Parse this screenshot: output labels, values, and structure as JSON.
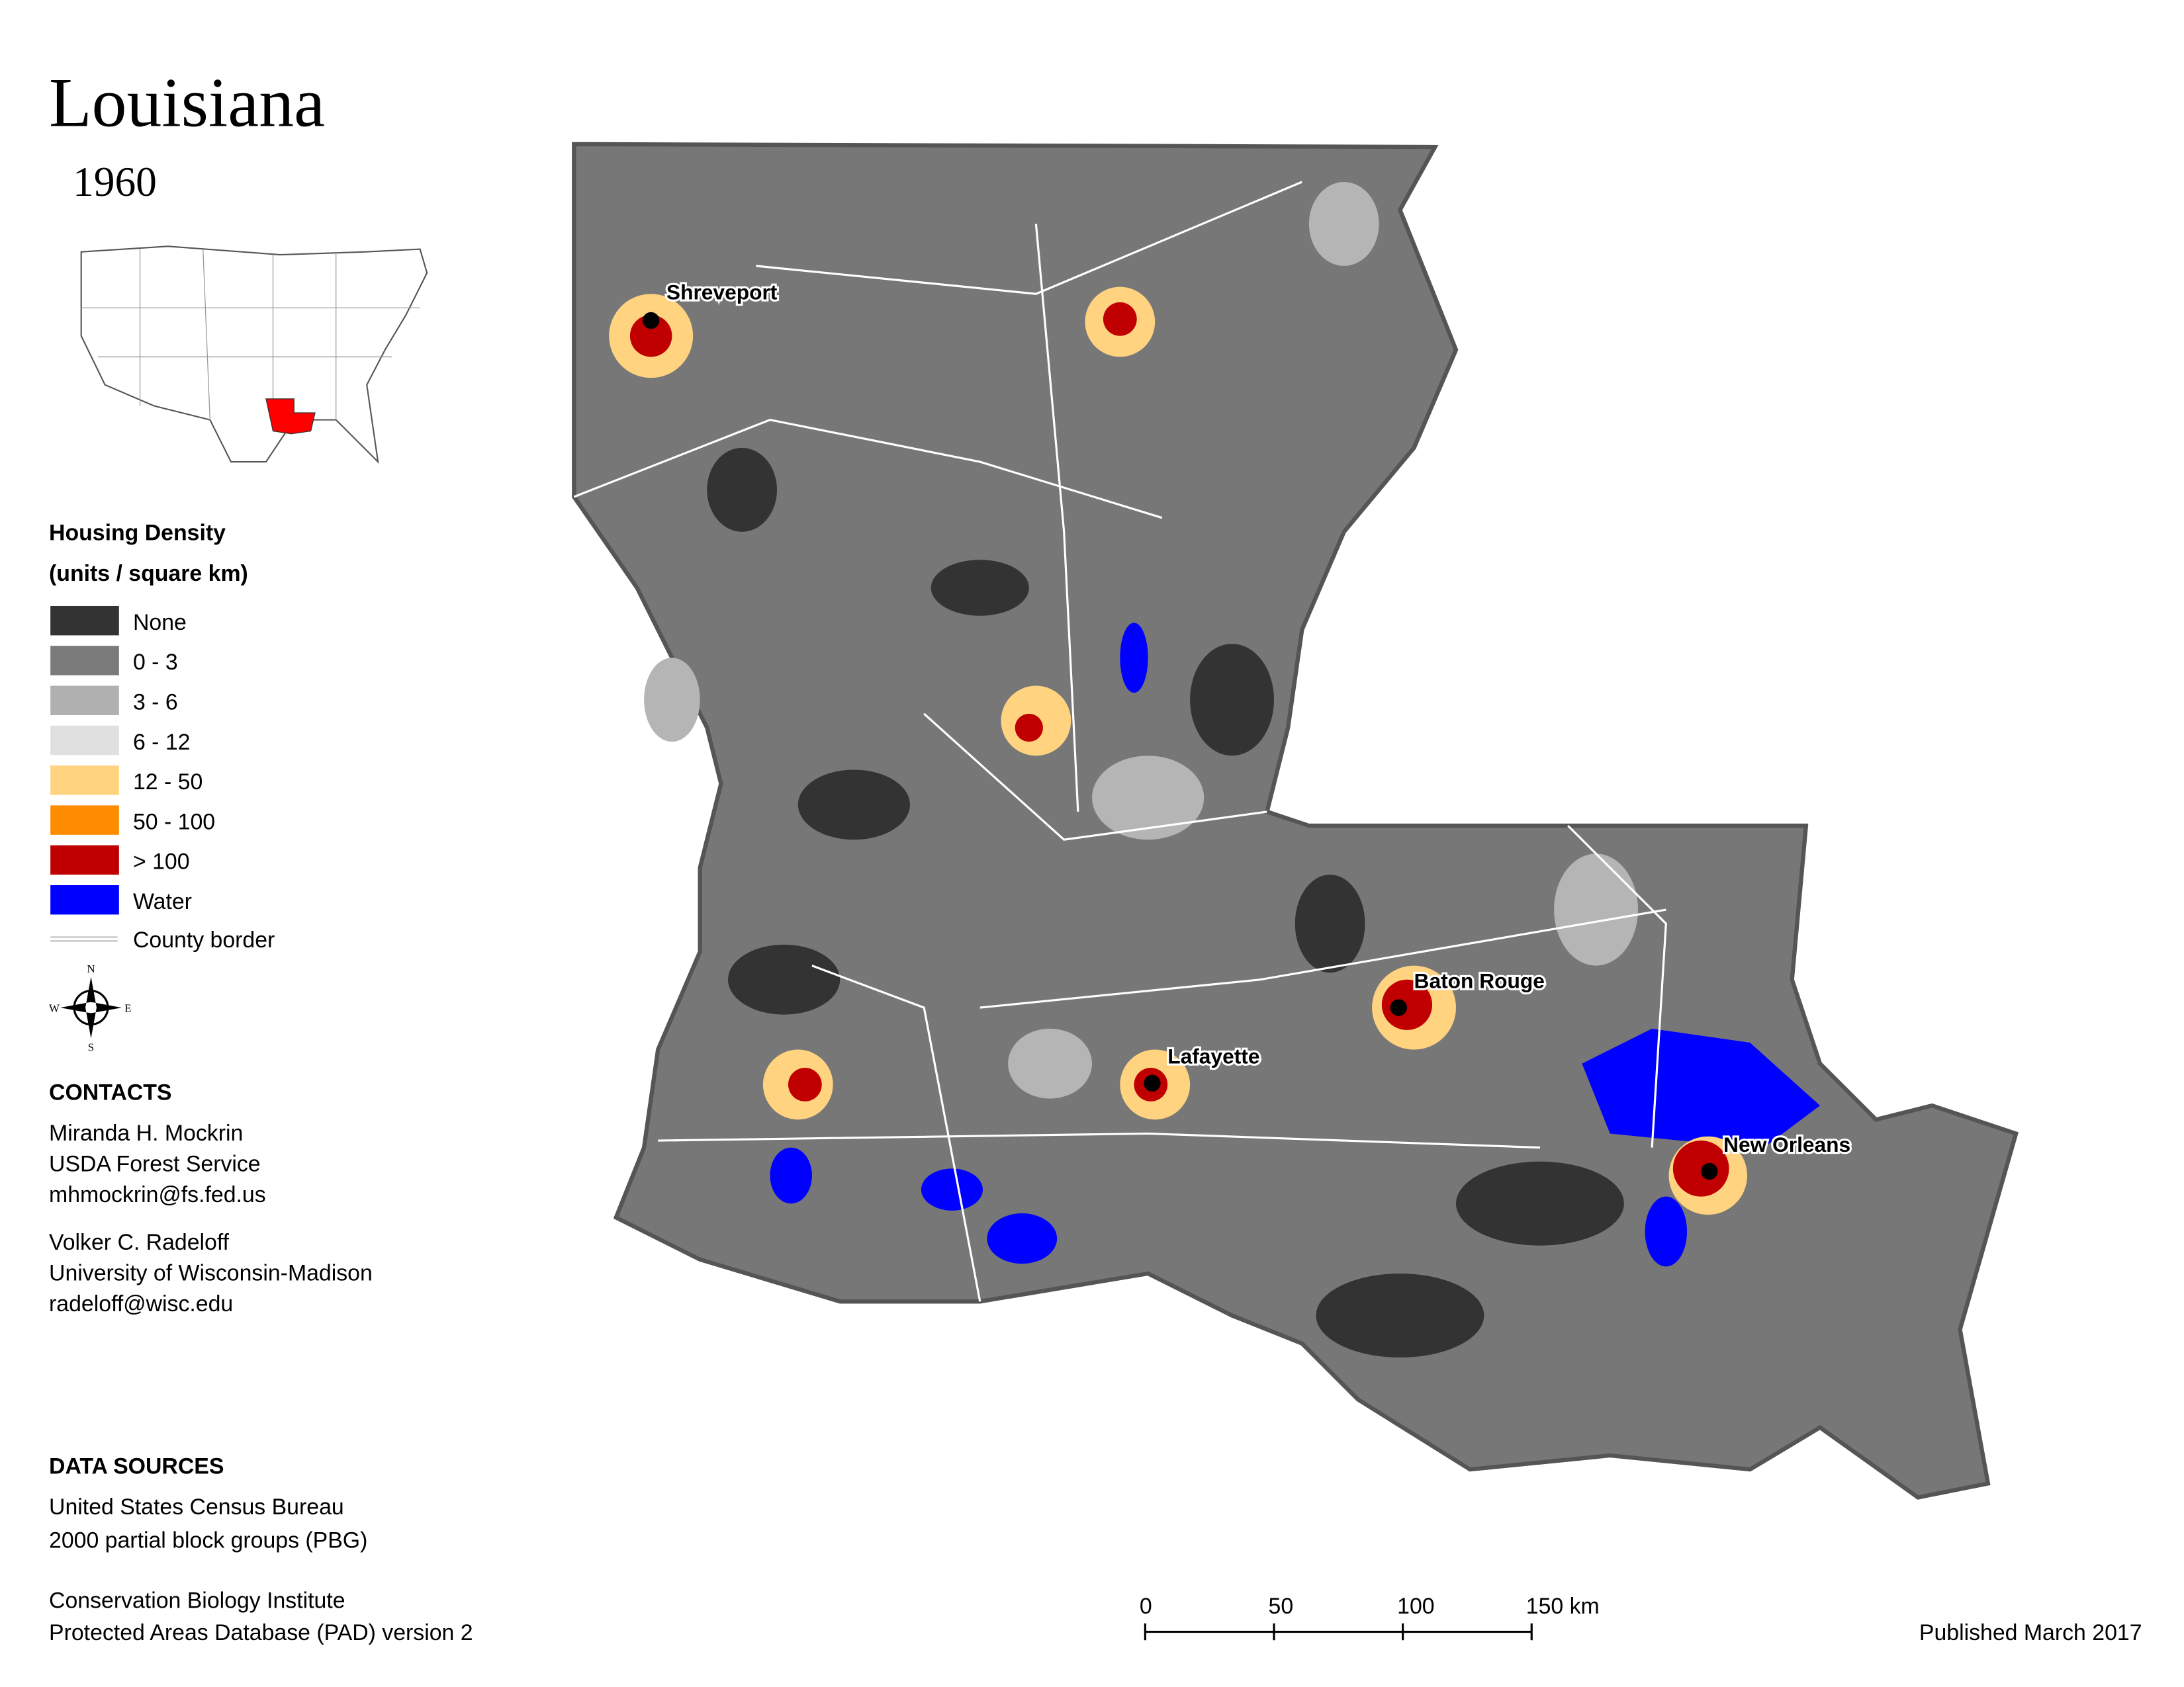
{
  "header": {
    "title": "Louisiana",
    "subtitle": "1960"
  },
  "legend": {
    "title": "Housing Density",
    "subtitle": "(units / square km)",
    "items": [
      {
        "label": "None",
        "color": "#333333"
      },
      {
        "label": "0 - 3",
        "color": "#7a7a7a"
      },
      {
        "label": "3 - 6",
        "color": "#b0b0b0"
      },
      {
        "label": "6 - 12",
        "color": "#e0e0e0"
      },
      {
        "label": "12 - 50",
        "color": "#ffd37f"
      },
      {
        "label": "50 - 100",
        "color": "#ff8c00"
      },
      {
        "label": "> 100",
        "color": "#c00000"
      },
      {
        "label": "Water",
        "color": "#0000ff"
      }
    ],
    "border_label": "County border"
  },
  "cities": [
    "Shreveport",
    "Baton Rouge",
    "Lafayette",
    "New Orleans"
  ],
  "contacts": {
    "title": "CONTACTS",
    "people": [
      [
        "Miranda H. Mockrin",
        "USDA Forest Service",
        "mhmockrin@fs.fed.us"
      ],
      [
        "Volker C. Radeloff",
        "University of Wisconsin-Madison",
        "radeloff@wisc.edu"
      ]
    ]
  },
  "data_sources": {
    "title": "DATA SOURCES",
    "sources": [
      [
        "United States Census Bureau",
        "2000 partial block groups (PBG)"
      ],
      [
        "Conservation Biology Institute",
        "Protected Areas Database (PAD) version 2"
      ]
    ]
  },
  "scale_bar": {
    "ticks": [
      0,
      50,
      100,
      {
        "value": 150,
        "label": "150 km"
      }
    ]
  },
  "published": "Published March 2017"
}
